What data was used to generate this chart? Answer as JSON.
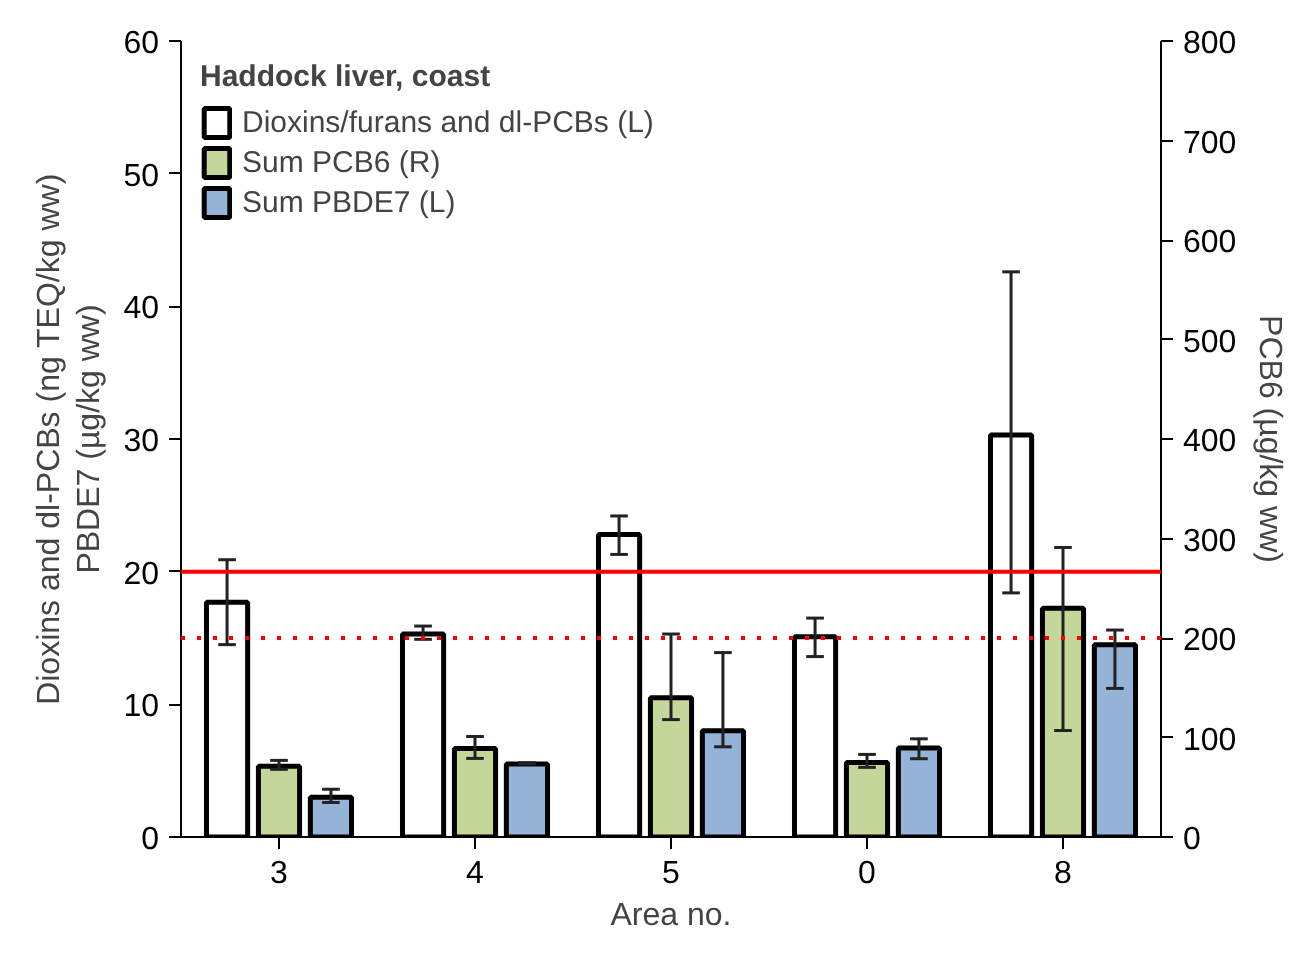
{
  "chart_data": {
    "type": "bar",
    "xlabel": "Area no.",
    "ylabel": "Dioxins and dl-PCBs (ng TEQ/kg ww)\nPBDE7 (µg/kg ww)",
    "y2label": "PCB6 (µg/kg ww)",
    "legend_title": "Haddock liver, coast",
    "categories": [
      "3",
      "4",
      "5",
      "0",
      "8"
    ],
    "series": [
      {
        "name": "Dioxins/furans and dl-PCBs (L)",
        "color": "#ffffff",
        "values": [
          17.7,
          15.3,
          22.8,
          15.1,
          30.3
        ],
        "errors": [
          [
            14.5,
            20.9
          ],
          [
            14.9,
            15.9
          ],
          [
            21.3,
            24.2
          ],
          [
            13.6,
            16.5
          ],
          [
            18.4,
            42.6
          ]
        ]
      },
      {
        "name": "Sum PCB6 (R)",
        "color": "#c4d79b",
        "axis": "y2",
        "values": [
          71,
          89,
          140,
          75,
          230
        ],
        "errors": [
          [
            68,
            77
          ],
          [
            79,
            101
          ],
          [
            118,
            204
          ],
          [
            70,
            83
          ],
          [
            107,
            291
          ]
        ]
      },
      {
        "name": "Sum PBDE7 (L)",
        "color": "#95b3d7",
        "values": [
          3.0,
          5.5,
          8.0,
          6.7,
          14.5
        ],
        "errors": [
          [
            2.6,
            3.6
          ],
          [
            5.5,
            5.6
          ],
          [
            6.8,
            13.9
          ],
          [
            5.9,
            7.4
          ],
          [
            11.2,
            15.6
          ]
        ]
      }
    ],
    "ylim": [
      0,
      60
    ],
    "yticks": [
      0,
      10,
      20,
      30,
      40,
      50,
      60
    ],
    "y2lim": [
      0,
      800
    ],
    "y2ticks": [
      0,
      100,
      200,
      300,
      400,
      500,
      600,
      700,
      800
    ],
    "ref_lines": [
      {
        "axis": "y",
        "value": 20,
        "color": "#ff0000",
        "line_style": "solid"
      },
      {
        "axis": "y",
        "value": 15,
        "color": "#ff0000",
        "line_style": "dotted"
      }
    ],
    "grid": false,
    "legend": "top left"
  }
}
